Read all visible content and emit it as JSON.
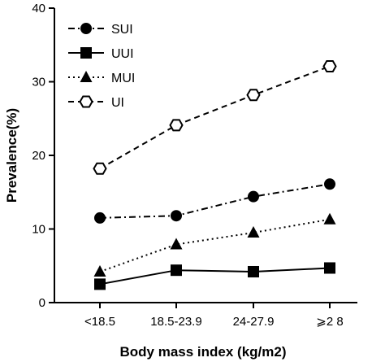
{
  "chart_data": {
    "type": "line",
    "title": "",
    "xlabel": "Body mass index (kg/m2)",
    "ylabel": "Prevalence(%)",
    "categories": [
      "<18.5",
      "18.5-23.9",
      "24-27.9",
      "⩾2 8"
    ],
    "ylim": [
      0,
      40
    ],
    "yticks": [
      0,
      10,
      20,
      30,
      40
    ],
    "grid": false,
    "legend_position": "top-left",
    "series": [
      {
        "name": "SUI",
        "values": [
          11.5,
          11.8,
          14.4,
          16.1
        ],
        "marker": "filled-circle",
        "line": "dash-dot"
      },
      {
        "name": "UUI",
        "values": [
          2.5,
          4.4,
          4.2,
          4.7
        ],
        "marker": "filled-square",
        "line": "solid"
      },
      {
        "name": "MUI",
        "values": [
          4.2,
          7.9,
          9.5,
          11.3
        ],
        "marker": "filled-triangle",
        "line": "dotted"
      },
      {
        "name": "UI",
        "values": [
          18.2,
          24.1,
          28.2,
          32.1
        ],
        "marker": "open-hexagon",
        "line": "dashed"
      }
    ]
  }
}
